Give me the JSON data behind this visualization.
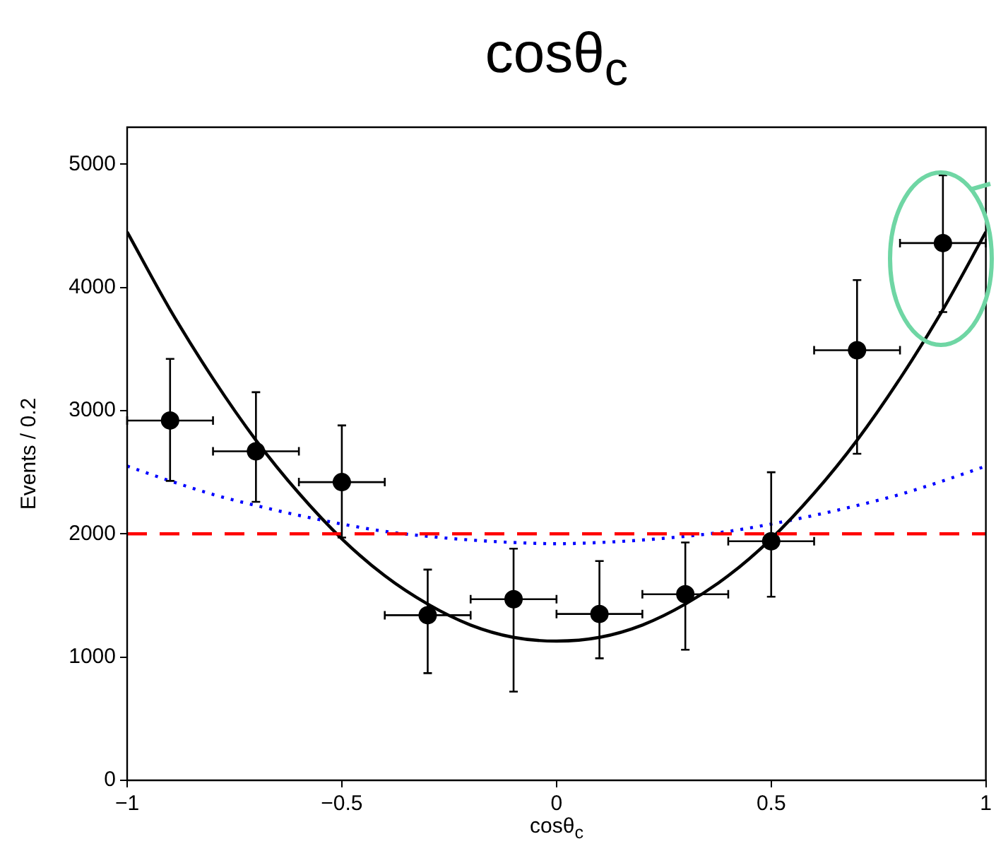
{
  "chart_data": {
    "type": "scatter",
    "title": "cosθ$_{c}$",
    "xlabel": "cosθ$_{c}$",
    "ylabel": "Events / 0.2",
    "xlim": [
      -1,
      1
    ],
    "xticks": [
      {
        "value": -1,
        "label": "−1"
      },
      {
        "value": -0.5,
        "label": "−0.5"
      },
      0,
      0.5,
      1
    ],
    "ylim": [
      0,
      5300
    ],
    "yticks": [
      0,
      1000,
      2000,
      3000,
      4000,
      5000
    ],
    "grid": false,
    "legend": false,
    "series": [
      {
        "type": "scatter",
        "color": "#000000",
        "marker": "circle",
        "x": [
          -0.9,
          -0.7,
          -0.5,
          -0.3,
          -0.1,
          0.1,
          0.3,
          0.5,
          0.7,
          0.9
        ],
        "values": [
          2920,
          2670,
          2420,
          1340,
          1470,
          1350,
          1510,
          1940,
          3490,
          4360
        ],
        "errors": [
          [
            2430,
            3420
          ],
          [
            2260,
            3150
          ],
          [
            1970,
            2880
          ],
          [
            870,
            1710
          ],
          [
            720,
            1880
          ],
          [
            990,
            1780
          ],
          [
            1060,
            1930
          ],
          [
            1490,
            2500
          ],
          [
            2650,
            4060
          ],
          [
            3800,
            4910
          ]
        ],
        "xerrors": [
          0.1,
          0.1,
          0.1,
          0.1,
          0.1,
          0.1,
          0.1,
          0.1,
          0.1,
          0.1
        ]
      },
      {
        "type": "line",
        "color": "#000000",
        "line_style": "solid",
        "marker": "none",
        "x": [
          -1,
          -0.9,
          -0.8,
          -0.7,
          -0.6,
          -0.5,
          -0.4,
          -0.3,
          -0.2,
          -0.1,
          0,
          0.1,
          0.2,
          0.3,
          0.4,
          0.5,
          0.6,
          0.7,
          0.8,
          0.9,
          1
        ],
        "values": [
          4450,
          3820,
          3260,
          2760,
          2330,
          1960,
          1660,
          1430,
          1260,
          1160,
          1130,
          1160,
          1260,
          1430,
          1660,
          1960,
          2330,
          2760,
          3260,
          3820,
          4450
        ]
      },
      {
        "type": "line",
        "color": "#0000ff",
        "line_style": "dotted",
        "marker": "none",
        "x": [
          -1,
          -0.9,
          -0.8,
          -0.7,
          -0.6,
          -0.5,
          -0.4,
          -0.3,
          -0.2,
          -0.1,
          0,
          0.1,
          0.2,
          0.3,
          0.4,
          0.5,
          0.6,
          0.7,
          0.8,
          0.9,
          1
        ],
        "values": [
          2550,
          2430,
          2320,
          2230,
          2150,
          2080,
          2020,
          1980,
          1950,
          1930,
          1920,
          1930,
          1950,
          1980,
          2020,
          2080,
          2150,
          2230,
          2320,
          2430,
          2550
        ]
      }
    ],
    "ref_lines": [
      {
        "axis": "y",
        "value": 2000,
        "color": "#ff0000",
        "line_style": "dashed"
      }
    ]
  }
}
